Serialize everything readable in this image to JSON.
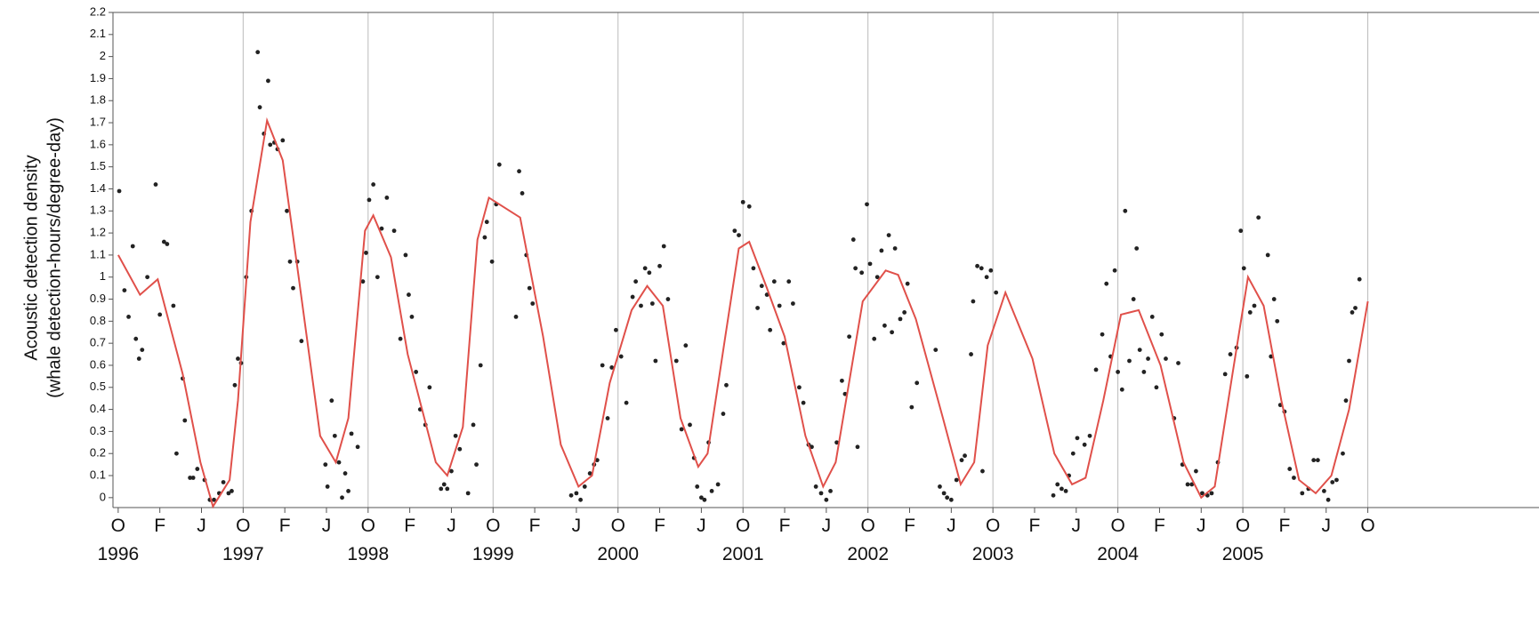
{
  "chart_data": {
    "type": "scatter",
    "ylabel": [
      "Acoustic detection density",
      "(whale detection-hours/degree-day)"
    ],
    "color": "#222222",
    "x": [
      0.1,
      0.6,
      1.0,
      1.4,
      1.7,
      2.0,
      2.3,
      2.8,
      3.6,
      4.0,
      4.4,
      4.7,
      5.3,
      5.6,
      6.2,
      6.4,
      6.9,
      7.2,
      7.6,
      8.3,
      8.8,
      9.2,
      9.7,
      10.1,
      10.6,
      10.9,
      11.2,
      11.5,
      11.8,
      12.3,
      12.8,
      13.4,
      13.6,
      14.0,
      14.4,
      14.6,
      15.0,
      15.3,
      15.8,
      16.2,
      16.5,
      16.8,
      17.2,
      17.6,
      19.9,
      20.1,
      20.5,
      20.8,
      21.2,
      21.5,
      21.8,
      22.1,
      22.4,
      23.0,
      23.5,
      23.8,
      24.1,
      24.5,
      24.9,
      25.3,
      25.8,
      26.5,
      27.1,
      27.6,
      27.9,
      28.2,
      28.6,
      29.0,
      29.5,
      29.9,
      31.0,
      31.3,
      31.6,
      32.0,
      32.4,
      32.8,
      33.6,
      34.1,
      34.4,
      34.8,
      35.2,
      35.4,
      35.9,
      36.3,
      36.6,
      38.2,
      38.5,
      38.8,
      39.2,
      39.5,
      39.8,
      43.5,
      44.0,
      44.4,
      44.8,
      45.3,
      45.7,
      46.0,
      46.5,
      47.0,
      47.4,
      47.8,
      48.3,
      48.8,
      49.4,
      49.7,
      50.2,
      50.6,
      51.0,
      51.3,
      51.6,
      52.0,
      52.4,
      52.8,
      53.6,
      54.1,
      54.5,
      54.9,
      55.3,
      55.6,
      56.0,
      56.3,
      56.7,
      57.0,
      57.6,
      58.1,
      58.4,
      59.2,
      59.6,
      60.0,
      60.6,
      61.0,
      61.4,
      61.8,
      62.3,
      62.6,
      63.0,
      63.5,
      63.9,
      64.4,
      64.8,
      65.4,
      65.8,
      66.3,
      66.6,
      67.0,
      67.5,
      68.0,
      68.4,
      69.0,
      69.5,
      69.8,
      70.2,
      70.6,
      70.8,
      71.0,
      71.4,
      71.9,
      72.2,
      72.6,
      72.9,
      73.3,
      73.6,
      74.0,
      74.3,
      74.6,
      75.1,
      75.5,
      75.8,
      76.2,
      76.7,
      78.5,
      78.9,
      79.3,
      79.6,
      80.0,
      80.5,
      81.0,
      81.3,
      81.9,
      82.1,
      82.5,
      82.9,
      83.0,
      83.4,
      83.8,
      84.3,
      89.8,
      90.2,
      90.6,
      91.0,
      91.3,
      91.7,
      92.1,
      92.8,
      93.3,
      93.9,
      94.5,
      94.9,
      95.3,
      95.7,
      96.0,
      96.4,
      96.7,
      97.1,
      97.5,
      97.8,
      98.1,
      98.5,
      98.9,
      99.3,
      99.7,
      100.2,
      100.6,
      101.4,
      101.8,
      102.2,
      102.7,
      103.1,
      103.5,
      104.1,
      104.6,
      105.0,
      105.6,
      106.3,
      106.8,
      107.4,
      107.8,
      108.1,
      108.4,
      108.7,
      109.1,
      109.5,
      110.4,
      110.7,
      111.0,
      111.3,
      111.6,
      112.0,
      112.5,
      112.9,
      113.7,
      114.3,
      114.8,
      115.2,
      115.8,
      116.2,
      116.6,
      117.0,
      117.6,
      117.9,
      118.2,
      118.5,
      118.8,
      119.2
    ],
    "values": [
      1.39,
      0.94,
      0.82,
      1.14,
      0.72,
      0.63,
      0.67,
      1.0,
      1.42,
      0.83,
      1.16,
      1.15,
      0.87,
      0.2,
      0.54,
      0.35,
      0.09,
      0.09,
      0.13,
      0.08,
      -0.01,
      -0.01,
      0.02,
      0.07,
      0.02,
      0.03,
      0.51,
      0.63,
      0.61,
      1.0,
      1.3,
      2.02,
      1.77,
      1.65,
      1.89,
      1.6,
      1.61,
      1.58,
      1.62,
      1.3,
      1.07,
      0.95,
      1.07,
      0.71,
      0.15,
      0.05,
      0.44,
      0.28,
      0.16,
      0.0,
      0.11,
      0.03,
      0.29,
      0.23,
      0.98,
      1.11,
      1.35,
      1.42,
      1.0,
      1.22,
      1.36,
      1.21,
      0.72,
      1.1,
      0.92,
      0.82,
      0.57,
      0.4,
      0.33,
      0.5,
      0.04,
      0.06,
      0.04,
      0.12,
      0.28,
      0.22,
      0.02,
      0.33,
      0.15,
      0.6,
      1.18,
      1.25,
      1.07,
      1.33,
      1.51,
      0.82,
      1.48,
      1.38,
      1.1,
      0.95,
      0.88,
      0.01,
      0.02,
      -0.01,
      0.05,
      0.11,
      0.15,
      0.17,
      0.6,
      0.36,
      0.59,
      0.76,
      0.64,
      0.43,
      0.91,
      0.98,
      0.87,
      1.04,
      1.02,
      0.88,
      0.62,
      1.05,
      1.14,
      0.9,
      0.62,
      0.31,
      0.69,
      0.33,
      0.18,
      0.05,
      0.0,
      -0.01,
      0.25,
      0.03,
      0.06,
      0.38,
      0.51,
      1.21,
      1.19,
      1.34,
      1.32,
      1.04,
      0.86,
      0.96,
      0.92,
      0.76,
      0.98,
      0.87,
      0.7,
      0.98,
      0.88,
      0.5,
      0.43,
      0.24,
      0.23,
      0.05,
      0.02,
      -0.01,
      0.03,
      0.25,
      0.53,
      0.47,
      0.73,
      1.17,
      1.04,
      0.23,
      1.02,
      1.33,
      1.06,
      0.72,
      1.0,
      1.12,
      0.78,
      1.19,
      0.75,
      1.13,
      0.81,
      0.84,
      0.97,
      0.41,
      0.52,
      0.67,
      0.05,
      0.02,
      0.0,
      -0.01,
      0.08,
      0.17,
      0.19,
      0.65,
      0.89,
      1.05,
      1.04,
      0.12,
      1.0,
      1.03,
      0.93,
      0.01,
      0.06,
      0.04,
      0.03,
      0.1,
      0.2,
      0.27,
      0.24,
      0.28,
      0.58,
      0.74,
      0.97,
      0.64,
      1.03,
      0.57,
      0.49,
      1.3,
      0.62,
      0.9,
      1.13,
      0.67,
      0.57,
      0.63,
      0.82,
      0.5,
      0.74,
      0.63,
      0.36,
      0.61,
      0.15,
      0.06,
      0.06,
      0.12,
      0.02,
      0.01,
      0.02,
      0.16,
      0.56,
      0.65,
      0.68,
      1.21,
      1.04,
      0.55,
      0.84,
      0.87,
      1.27,
      1.1,
      0.64,
      0.9,
      0.8,
      0.42,
      0.39,
      0.13,
      0.09,
      0.02,
      0.04,
      0.17,
      0.17,
      0.03,
      -0.01,
      0.07,
      0.08,
      0.2,
      0.44,
      0.62,
      0.84,
      0.86,
      0.99
    ],
    "line": {
      "type": "line",
      "color": "#e0504a",
      "x": [
        0,
        2.1,
        3.8,
        6.2,
        7.9,
        9.1,
        10.7,
        11.5,
        12.7,
        14.3,
        15.8,
        17.3,
        19.4,
        20.9,
        22.1,
        23.7,
        24.5,
        26.2,
        27.8,
        30.5,
        31.6,
        33.1,
        34.5,
        35.6,
        38.6,
        40.8,
        42.5,
        44.2,
        45.5,
        47.2,
        49.3,
        50.8,
        52.3,
        54.0,
        55.7,
        56.6,
        58.3,
        59.6,
        60.6,
        62.3,
        64.0,
        66.0,
        67.7,
        68.9,
        71.5,
        73.7,
        74.9,
        76.6,
        79.2,
        80.9,
        82.2,
        83.5,
        85.2,
        87.8,
        89.9,
        91.6,
        92.9,
        94.6,
        96.3,
        98.0,
        100.1,
        102.3,
        104.0,
        105.3,
        107.0,
        108.5,
        110.0,
        111.7,
        113.4,
        115.0,
        116.5,
        118.2,
        120.0
      ],
      "values": [
        1.1,
        0.92,
        0.99,
        0.56,
        0.16,
        -0.04,
        0.08,
        0.44,
        1.25,
        1.71,
        1.53,
        1.01,
        0.28,
        0.16,
        0.36,
        1.21,
        1.28,
        1.09,
        0.65,
        0.16,
        0.1,
        0.32,
        1.17,
        1.36,
        1.27,
        0.73,
        0.24,
        0.05,
        0.1,
        0.52,
        0.85,
        0.96,
        0.87,
        0.36,
        0.14,
        0.2,
        0.73,
        1.13,
        1.16,
        0.95,
        0.73,
        0.28,
        0.05,
        0.16,
        0.89,
        1.03,
        1.01,
        0.81,
        0.36,
        0.06,
        0.16,
        0.69,
        0.93,
        0.63,
        0.2,
        0.06,
        0.09,
        0.44,
        0.83,
        0.85,
        0.6,
        0.16,
        0.0,
        0.05,
        0.56,
        1.0,
        0.87,
        0.44,
        0.08,
        0.02,
        0.1,
        0.4,
        0.89
      ]
    },
    "xlim": [
      -0.5,
      122.6
    ],
    "ylim": [
      -0.045,
      2.2
    ],
    "yticks": [
      0,
      0.1,
      0.2,
      0.3,
      0.4,
      0.5,
      0.6,
      0.7,
      0.8,
      0.9,
      1,
      1.1,
      1.2,
      1.3,
      1.4,
      1.5,
      1.6,
      1.7,
      1.8,
      1.9,
      2,
      2.1,
      2.2
    ],
    "xticks": [
      {
        "value": 0,
        "label": "O"
      },
      {
        "value": 4,
        "label": "F"
      },
      {
        "value": 8,
        "label": "J"
      },
      {
        "value": 12,
        "label": "O"
      },
      {
        "value": 16,
        "label": "F"
      },
      {
        "value": 20,
        "label": "J"
      },
      {
        "value": 24,
        "label": "O"
      },
      {
        "value": 28,
        "label": "F"
      },
      {
        "value": 32,
        "label": "J"
      },
      {
        "value": 36,
        "label": "O"
      },
      {
        "value": 40,
        "label": "F"
      },
      {
        "value": 44,
        "label": "J"
      },
      {
        "value": 48,
        "label": "O"
      },
      {
        "value": 52,
        "label": "F"
      },
      {
        "value": 56,
        "label": "J"
      },
      {
        "value": 60,
        "label": "O"
      },
      {
        "value": 64,
        "label": "F"
      },
      {
        "value": 68,
        "label": "J"
      },
      {
        "value": 72,
        "label": "O"
      },
      {
        "value": 76,
        "label": "F"
      },
      {
        "value": 80,
        "label": "J"
      },
      {
        "value": 84,
        "label": "O"
      },
      {
        "value": 88,
        "label": "F"
      },
      {
        "value": 92,
        "label": "J"
      },
      {
        "value": 96,
        "label": "O"
      },
      {
        "value": 100,
        "label": "F"
      },
      {
        "value": 104,
        "label": "J"
      },
      {
        "value": 108,
        "label": "O"
      },
      {
        "value": 112,
        "label": "F"
      },
      {
        "value": 116,
        "label": "J"
      },
      {
        "value": 120,
        "label": "O"
      }
    ],
    "year_ticks": [
      {
        "value": 0,
        "label": "1996"
      },
      {
        "value": 12,
        "label": "1997"
      },
      {
        "value": 24,
        "label": "1998"
      },
      {
        "value": 36,
        "label": "1999"
      },
      {
        "value": 48,
        "label": "2000"
      },
      {
        "value": 60,
        "label": "2001"
      },
      {
        "value": 72,
        "label": "2002"
      },
      {
        "value": 84,
        "label": "2003"
      },
      {
        "value": 96,
        "label": "2004"
      },
      {
        "value": 108,
        "label": "2005"
      }
    ],
    "grid_at": "O"
  }
}
